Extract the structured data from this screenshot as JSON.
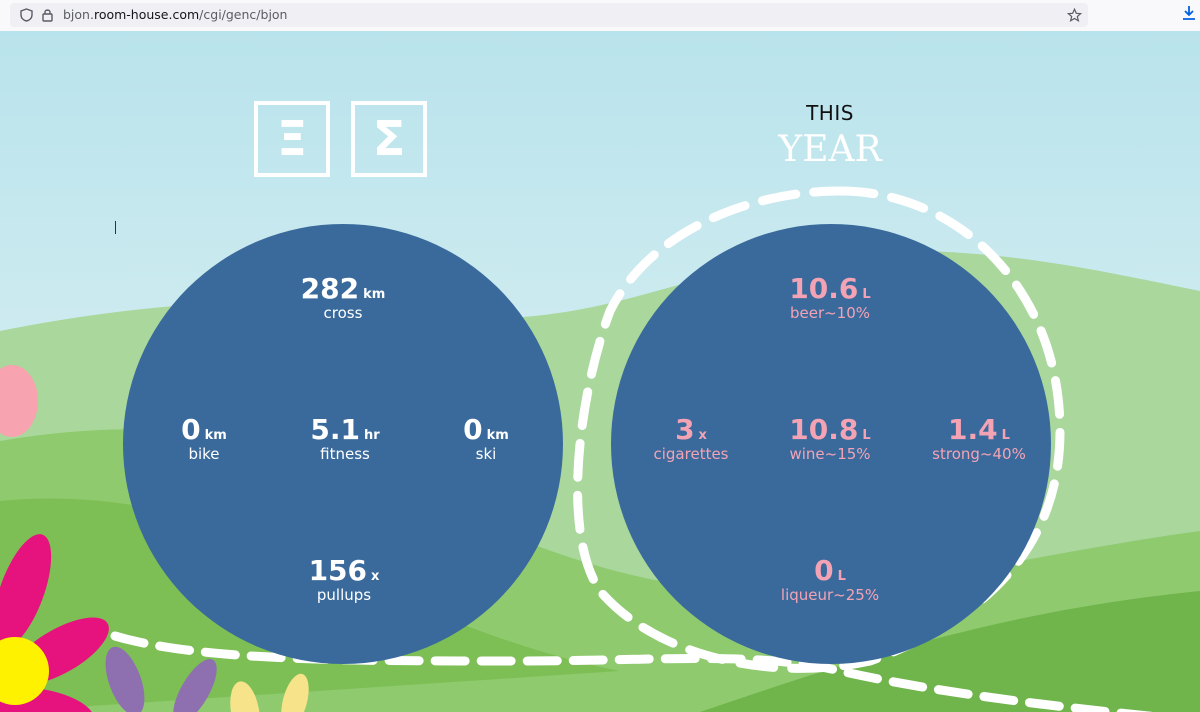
{
  "browser": {
    "url_prefix": "bjon.",
    "url_domain": "room-house.com",
    "url_path": "/cgi/genc/bjon"
  },
  "header": {
    "logo_left": "Ξ",
    "logo_right": "Σ",
    "period_line1": "THIS",
    "period_line2": "YEAR"
  },
  "sports": {
    "cross": {
      "value": "282",
      "unit": "km",
      "label": "cross"
    },
    "bike": {
      "value": "0",
      "unit": "km",
      "label": "bike"
    },
    "fitness": {
      "value": "5.1",
      "unit": "hr",
      "label": "fitness"
    },
    "ski": {
      "value": "0",
      "unit": "km",
      "label": "ski"
    },
    "pullups": {
      "value": "156",
      "unit": "x",
      "label": "pullups"
    }
  },
  "vices": {
    "beer": {
      "value": "10.6",
      "unit": "L",
      "label": "beer~10%"
    },
    "cigarettes": {
      "value": "3",
      "unit": "x",
      "label": "cigarettes"
    },
    "wine": {
      "value": "10.8",
      "unit": "L",
      "label": "wine~15%"
    },
    "strong": {
      "value": "1.4",
      "unit": "L",
      "label": "strong~40%"
    },
    "liqueur": {
      "value": "0",
      "unit": "L",
      "label": "liqueur~25%"
    }
  },
  "colors": {
    "circle": "#3a6a9c",
    "sky_top": "#bfe6ee",
    "hill_light": "#a8d69a",
    "hill_mid": "#8cc76b",
    "hill_dark": "#72b84e",
    "vice_text": "#f4a3b5",
    "sport_text": "#ffffff"
  }
}
